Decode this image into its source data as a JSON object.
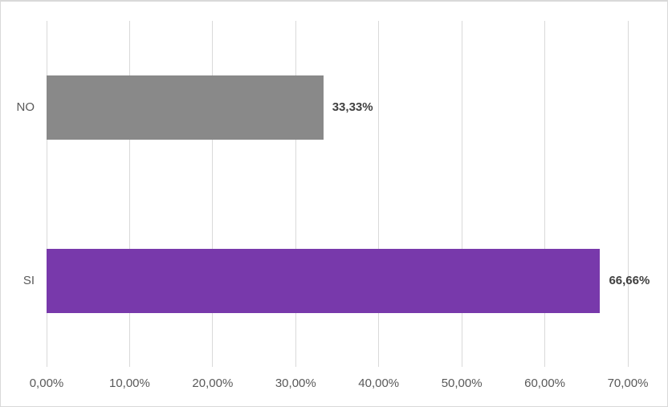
{
  "chart_data": {
    "type": "bar",
    "orientation": "horizontal",
    "title": "",
    "xlabel": "",
    "ylabel": "",
    "categories_top_to_bottom": [
      "NO",
      "SI"
    ],
    "categories": [
      "NO",
      "SI"
    ],
    "values": [
      33.33,
      66.66
    ],
    "data_labels": [
      "33,33%",
      "66,66%"
    ],
    "bar_colors": [
      "#898989",
      "#7839ab"
    ],
    "x_ticks": [
      "0,00%",
      "10,00%",
      "20,00%",
      "30,00%",
      "40,00%",
      "50,00%",
      "60,00%",
      "70,00%"
    ],
    "x_tick_values": [
      0,
      10,
      20,
      30,
      40,
      50,
      60,
      70
    ],
    "xlim": [
      0,
      70
    ],
    "grid": "vertical-major",
    "legend": "none",
    "colors": {
      "gridline": "#d9d9d9",
      "chart_border": "#d9d9d9",
      "axis_label_text": "#595959",
      "data_label_text": "#404040",
      "background": "#ffffff"
    }
  }
}
